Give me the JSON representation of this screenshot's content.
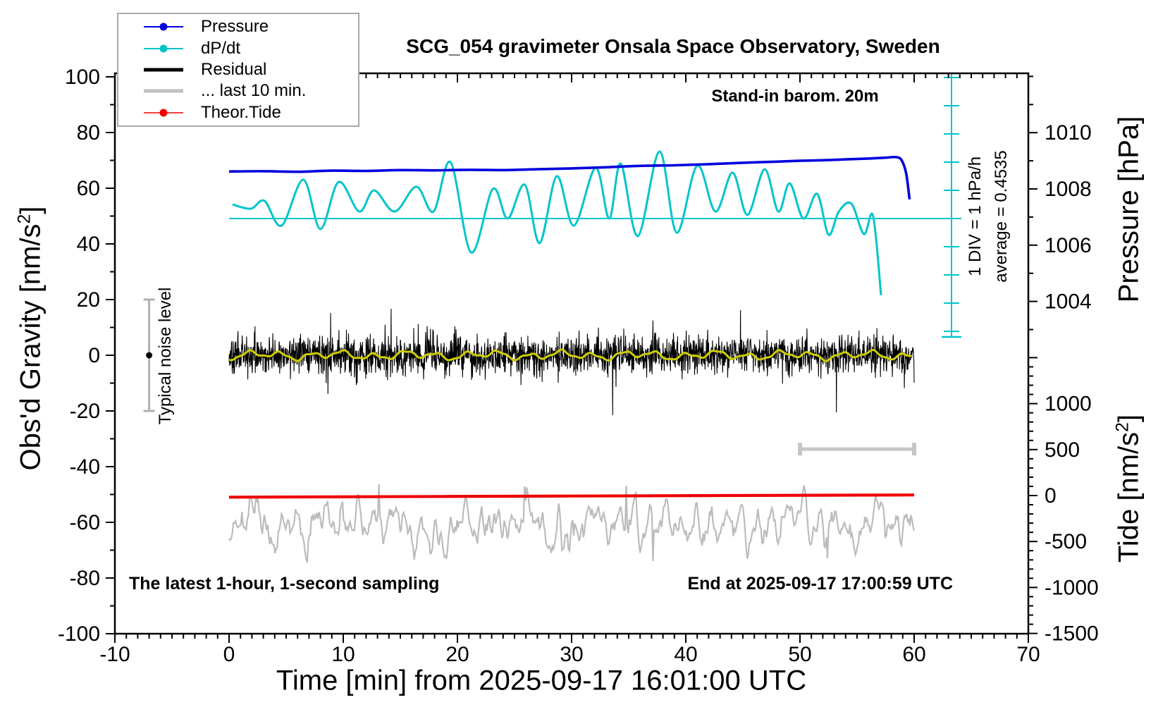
{
  "title": "SCG_054 gravimeter Onsala Space Observatory, Sweden",
  "legend": {
    "items": [
      {
        "label": "Pressure",
        "color": "#0000dd",
        "swatch": "line-dot",
        "weight": 2
      },
      {
        "label": "dP/dt",
        "color": "#00c5cb",
        "swatch": "line-dot",
        "weight": 2
      },
      {
        "label": "Residual",
        "color": "#000000",
        "swatch": "line",
        "weight": 5
      },
      {
        "label": "... last 10 min.",
        "color": "#c0c0c0",
        "swatch": "line",
        "weight": 5
      },
      {
        "label": "Theor.Tide",
        "color": "#ee0000",
        "swatch": "line-dot",
        "weight": 2
      }
    ]
  },
  "annotations": {
    "standin": "Stand-in barom. 20m",
    "div_note": "1 DIV = 1 hPa/h",
    "average_note": "average = 0.4535",
    "noise_label": "Typical noise level",
    "sampling_note": "The latest 1-hour, 1-second sampling",
    "end_note": "End at 2025-09-17 17:00:59 UTC"
  },
  "axes": {
    "x": {
      "title": "Time [min] from 2025-09-17 16:01:00 UTC",
      "range": [
        -10,
        70
      ],
      "major_ticks": [
        -10,
        0,
        10,
        20,
        30,
        40,
        50,
        60,
        70
      ],
      "minor_step": 1
    },
    "gravity": {
      "title_main": "Obs'd Gravity [nm/s",
      "title_sup": "2",
      "title_close": "]",
      "range": [
        -100,
        100
      ],
      "major_ticks": [
        100,
        80,
        60,
        40,
        20,
        0,
        -20,
        -40,
        -60,
        -80,
        -100
      ],
      "minor_step": 10
    },
    "pressure": {
      "title": "Pressure [hPa]",
      "labeled_ticks": [
        1010,
        1008,
        1006,
        1004
      ],
      "minor_step": 1,
      "visible_range": [
        1003,
        1012
      ]
    },
    "tide": {
      "title_main": "Tide [nm/s",
      "title_sup": "2",
      "title_close": "]",
      "labeled_ticks": [
        1000,
        500,
        0,
        -500,
        -1000,
        -1500
      ],
      "major_step": 500,
      "minor_step": 100,
      "visible_range": [
        -1500,
        1500
      ]
    }
  },
  "chart_data": {
    "type": "line",
    "x_unit": "minutes",
    "x_range": [
      -10,
      70
    ],
    "data_span_min": [
      0,
      60
    ],
    "series": [
      {
        "name": "Pressure",
        "unit": "hPa",
        "color": "#0000dd",
        "points": [
          [
            0,
            1008.62
          ],
          [
            3,
            1008.63
          ],
          [
            6,
            1008.61
          ],
          [
            9,
            1008.65
          ],
          [
            12,
            1008.64
          ],
          [
            15,
            1008.67
          ],
          [
            18,
            1008.66
          ],
          [
            21,
            1008.68
          ],
          [
            24,
            1008.67
          ],
          [
            27,
            1008.7
          ],
          [
            30,
            1008.73
          ],
          [
            33,
            1008.77
          ],
          [
            36,
            1008.82
          ],
          [
            39,
            1008.84
          ],
          [
            42,
            1008.88
          ],
          [
            45,
            1008.93
          ],
          [
            48,
            1008.97
          ],
          [
            50,
            1009.0
          ],
          [
            52,
            1009.02
          ],
          [
            54,
            1009.05
          ],
          [
            56,
            1009.08
          ],
          [
            57.5,
            1009.11
          ],
          [
            58.4,
            1009.13
          ],
          [
            58.9,
            1009.02
          ],
          [
            59.3,
            1008.55
          ],
          [
            59.6,
            1007.63
          ]
        ]
      },
      {
        "name": "dP/dt",
        "unit": "hPa/h",
        "color": "#00c5cb",
        "average": 0.4535,
        "div_scale_hPa_per_h": 1,
        "points": [
          [
            0.3,
            0.95
          ],
          [
            1.9,
            0.8
          ],
          [
            3.1,
            1.08
          ],
          [
            4.6,
            0.2
          ],
          [
            6.5,
            1.83
          ],
          [
            8.0,
            0.08
          ],
          [
            9.6,
            1.75
          ],
          [
            11.4,
            0.7
          ],
          [
            12.7,
            1.45
          ],
          [
            14.5,
            0.7
          ],
          [
            16.4,
            1.58
          ],
          [
            17.9,
            0.7
          ],
          [
            19.4,
            2.45
          ],
          [
            21.2,
            -0.75
          ],
          [
            23.1,
            1.5
          ],
          [
            24.4,
            0.45
          ],
          [
            25.9,
            1.65
          ],
          [
            27.2,
            -0.42
          ],
          [
            28.7,
            1.95
          ],
          [
            30.2,
            0.2
          ],
          [
            32.1,
            2.25
          ],
          [
            33.3,
            0.45
          ],
          [
            34.3,
            2.4
          ],
          [
            35.8,
            -0.17
          ],
          [
            37.7,
            2.83
          ],
          [
            39.2,
            -0.05
          ],
          [
            41.0,
            2.33
          ],
          [
            42.6,
            0.7
          ],
          [
            44.1,
            2.08
          ],
          [
            45.4,
            0.58
          ],
          [
            46.9,
            2.2
          ],
          [
            48.1,
            0.7
          ],
          [
            49.1,
            1.7
          ],
          [
            50.3,
            0.45
          ],
          [
            51.5,
            1.33
          ],
          [
            52.5,
            -0.12
          ],
          [
            53.4,
            0.7
          ],
          [
            54.5,
            0.98
          ],
          [
            55.6,
            -0.1
          ],
          [
            56.4,
            0.55
          ],
          [
            57.1,
            -2.27
          ]
        ]
      },
      {
        "name": "Residual",
        "unit": "nm/s2",
        "color": "#000000",
        "mean": 0,
        "typical_range": [
          -11,
          11
        ],
        "spike_range": [
          -22,
          17
        ],
        "sampling": "1 s",
        "smoothed_line_color": "#cdcd00"
      },
      {
        "name": "... last 10 min.",
        "unit": "nm/s2",
        "color": "#bcbcbc",
        "display_center_tide": -320,
        "typical_range_tide": [
          -700,
          120
        ]
      },
      {
        "name": "Theor.Tide",
        "unit": "nm/s2",
        "color": "#ee0000",
        "points_tide_axis": [
          [
            0,
            -18
          ],
          [
            30,
            -5
          ],
          [
            60,
            6
          ]
        ]
      }
    ],
    "markers": {
      "noise_bar": {
        "t": -7,
        "gravity_center": 0,
        "gravity_half_range": 20
      },
      "last10_bar": {
        "t_start": 50,
        "t_end": 60,
        "tide_level": 505
      }
    }
  }
}
